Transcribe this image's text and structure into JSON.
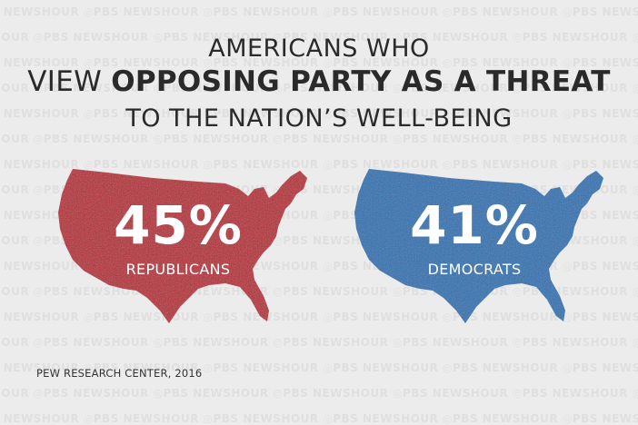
{
  "title": {
    "line1": "AMERICANS WHO",
    "line2_prefix": "VIEW ",
    "line2_bold": "OPPOSING PARTY AS A THREAT",
    "line3": "TO THE NATION’S WELL-BEING"
  },
  "watermark_text": "PBS NEWSHOUR",
  "source": "PEW RESEARCH CENTER, 2016",
  "colors": {
    "republicans": "#b31b2c",
    "democrats": "#1f6fb0",
    "background": "#ececec"
  },
  "chart_data": {
    "type": "bar",
    "categories": [
      "REPUBLICANS",
      "DEMOCRATS"
    ],
    "values": [
      45,
      41
    ],
    "value_labels": [
      "45%",
      "41%"
    ],
    "unit": "%",
    "title": "AMERICANS WHO VIEW OPPOSING PARTY AS A THREAT TO THE NATION’S WELL-BEING"
  }
}
